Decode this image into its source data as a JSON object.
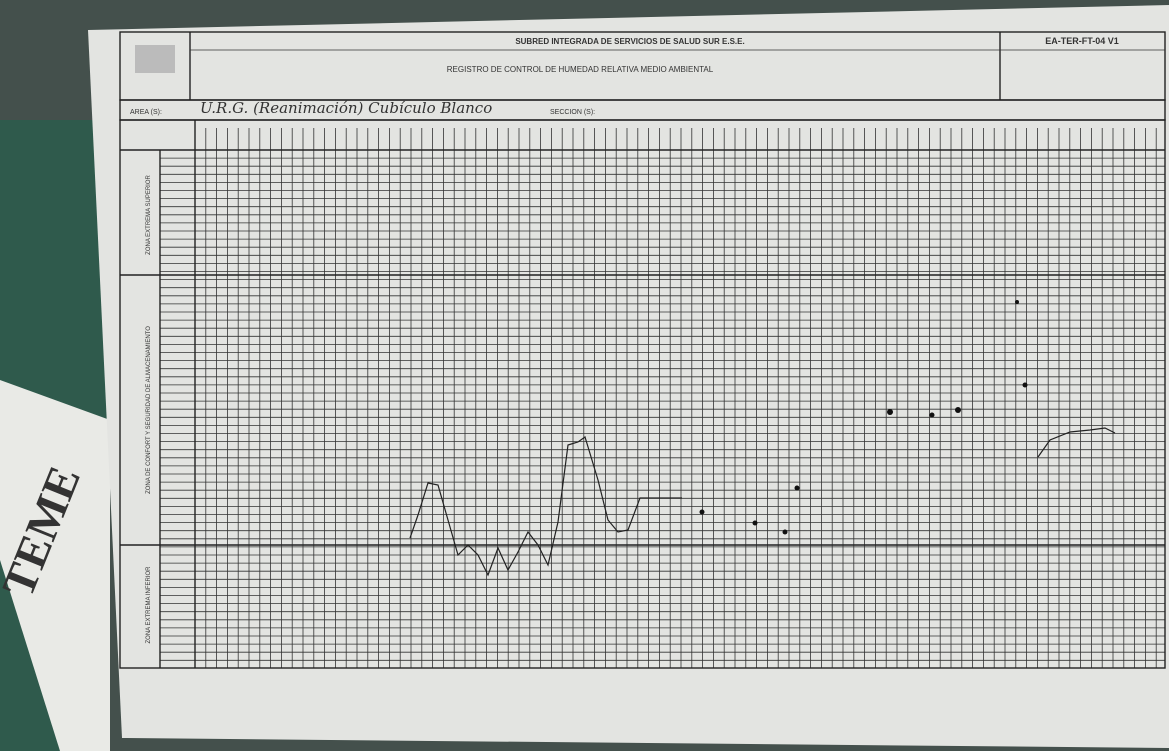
{
  "header": {
    "institution": "SUBRED INTEGRADA DE SERVICIOS DE SALUD SUR E.S.E.",
    "form_title": "REGISTRO DE CONTROL DE HUMEDAD RELATIVA MEDIO AMBIENTAL",
    "code": "EA-TER-FT-04 V1"
  },
  "area": {
    "label": "AREA (S):",
    "value": "U.R.G. (Reanimación) Cubículo Blanco"
  },
  "section": {
    "label": "SECCION (S):"
  },
  "zones": [
    "ZONA EXTREMA SUPERIOR",
    "ZONA DE CONFORT Y SEGURIDAD DE ALMACENAMIENTO",
    "ZONA EXTREMA INFERIOR"
  ],
  "sign": "TEME"
}
